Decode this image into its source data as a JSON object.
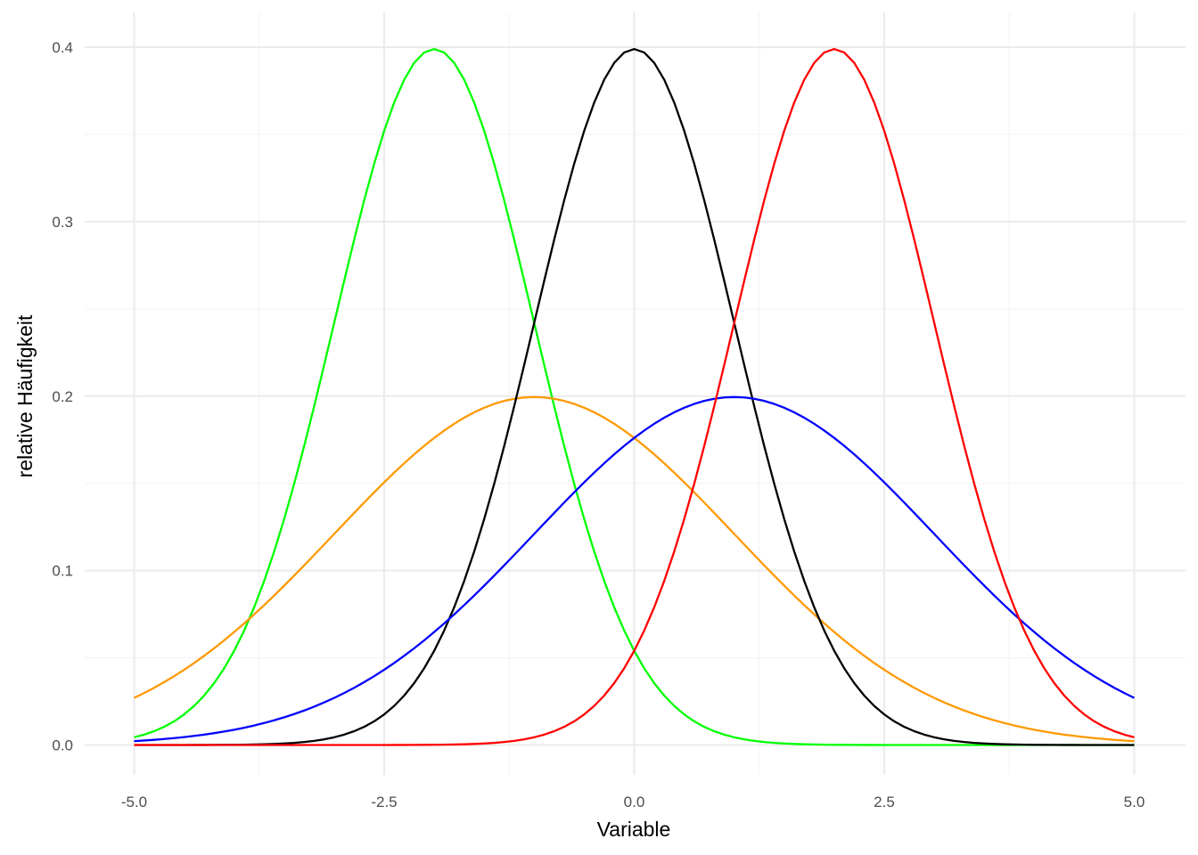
{
  "chart_data": {
    "type": "line",
    "title": "",
    "xlabel": "Variable",
    "ylabel": "relative Häufigkeit",
    "xlim": [
      -5,
      5
    ],
    "ylim": [
      0,
      0.4
    ],
    "xticks": [
      -5,
      -2.5,
      0,
      2.5,
      5
    ],
    "xtick_labels": [
      "-5.0",
      "-2.5",
      "0.0",
      "2.5",
      "5.0"
    ],
    "yticks": [
      0,
      0.1,
      0.2,
      0.3,
      0.4
    ],
    "ytick_labels": [
      "0.0",
      "0.1",
      "0.2",
      "0.3",
      "0.4"
    ],
    "grid": true,
    "legend": "none",
    "x_step": 0.1,
    "series": [
      {
        "mean": -2,
        "sd": 1,
        "color": "#00ff00"
      },
      {
        "mean": -1,
        "sd": 2,
        "color": "#ff9900"
      },
      {
        "mean": 0,
        "sd": 1,
        "color": "#000000"
      },
      {
        "mean": 1,
        "sd": 2,
        "color": "#0000ff"
      },
      {
        "mean": 2,
        "sd": 1,
        "color": "#ff0000"
      }
    ]
  }
}
